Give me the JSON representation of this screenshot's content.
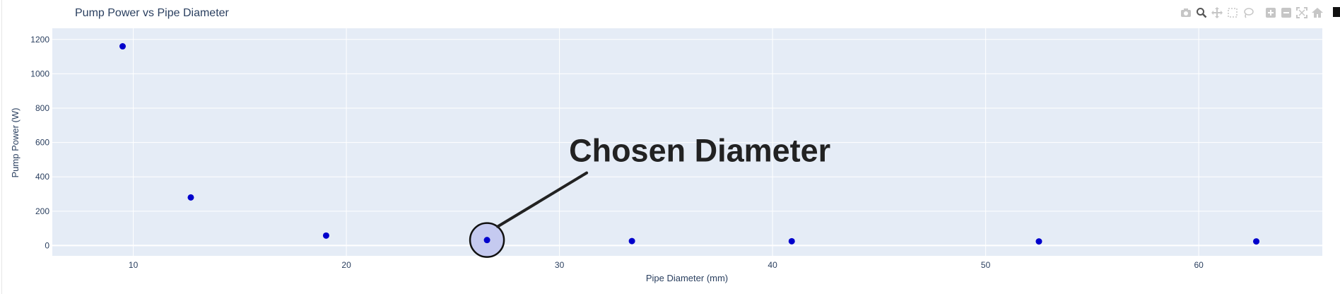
{
  "chart_data": {
    "type": "scatter",
    "title": "Pump Power vs Pipe Diameter",
    "xlabel": "Pipe Diameter (mm)",
    "ylabel": "Pump Power (W)",
    "xlim": [
      6.2,
      65.8
    ],
    "ylim": [
      -60,
      1265
    ],
    "xticks": [
      10,
      20,
      30,
      40,
      50,
      60
    ],
    "yticks": [
      0,
      200,
      400,
      600,
      800,
      1000,
      1200
    ],
    "grid": true,
    "legend": "none",
    "marker_color": "#0000cc",
    "plot_background": "#e5ecf6",
    "x": [
      9.5,
      12.7,
      19.05,
      26.6,
      33.4,
      40.9,
      52.5,
      62.7
    ],
    "y": [
      1160,
      280,
      58,
      32,
      26,
      25,
      24,
      24
    ],
    "annotation": {
      "text": "Chosen Diameter",
      "x": 26.6,
      "y": 32,
      "highlight_color": "#c5caf0"
    }
  },
  "toolbar": {
    "icons": [
      "camera-icon",
      "zoom-icon",
      "pan-icon",
      "box-select-icon",
      "lasso-select-icon",
      "zoom-in-icon",
      "zoom-out-icon",
      "autoscale-icon",
      "reset-axes-icon"
    ]
  }
}
